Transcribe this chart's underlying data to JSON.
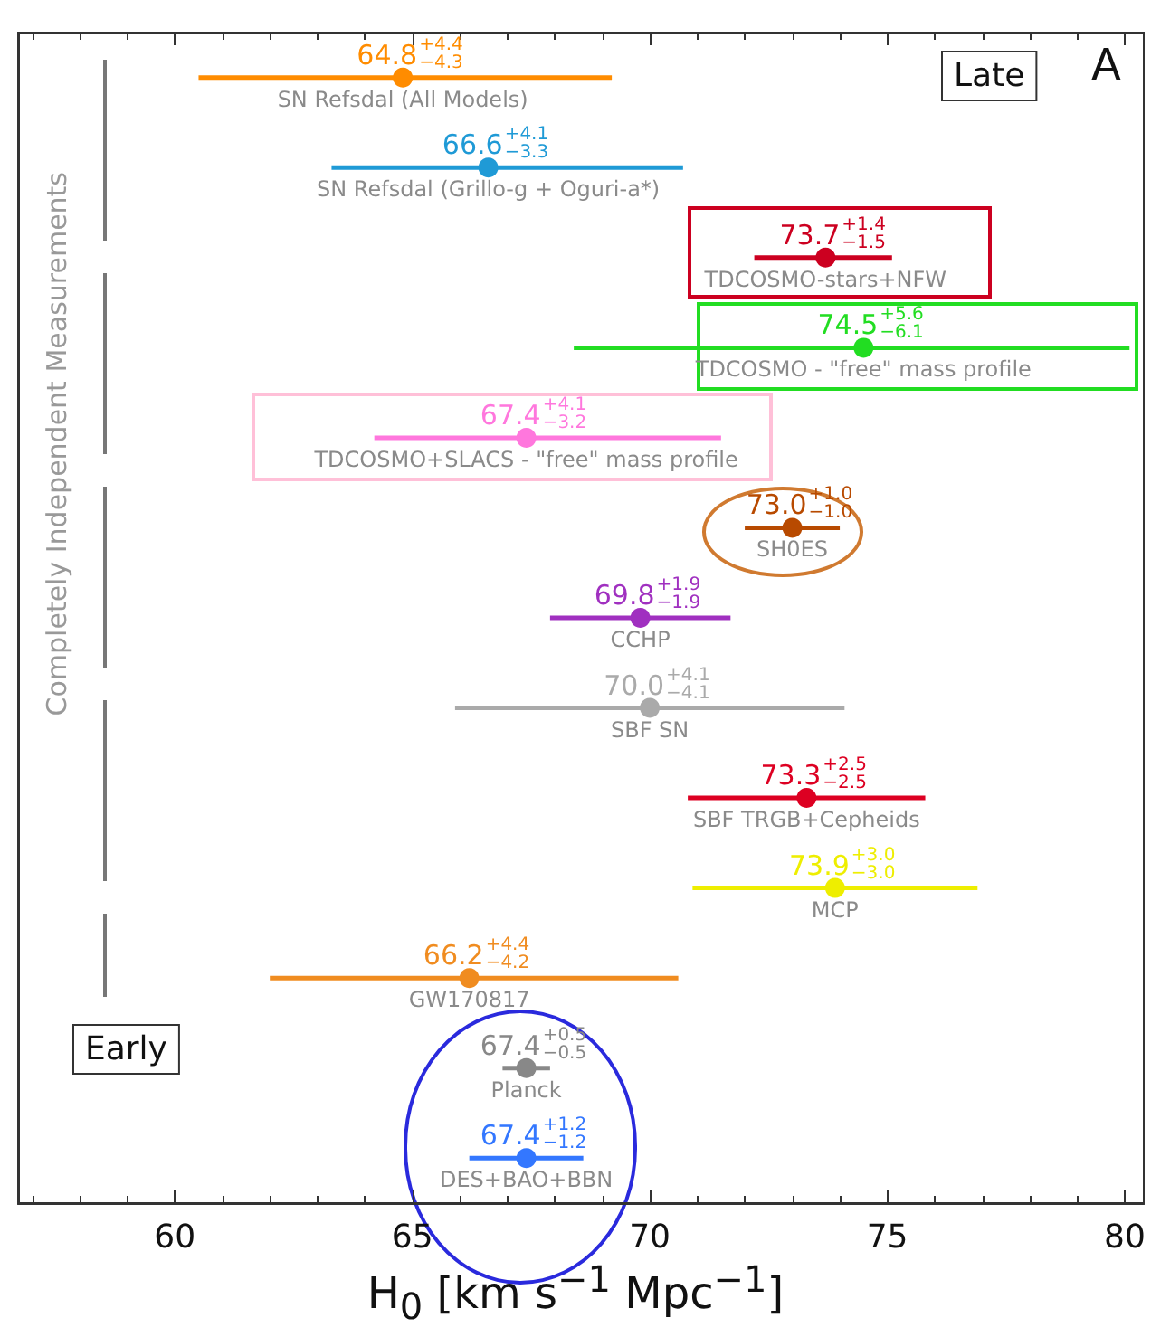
{
  "chart_data": {
    "type": "scatter",
    "orientation": "horizontal",
    "marker": "circle",
    "tick_labels": "x",
    "xlabel": "H$_{0}$ [km s$^{−1}$ Mpc$^{−1}$]",
    "categories": [
      "SN Refsdal (All Models)",
      "SN Refsdal (Grillo-g + Oguri-a*)",
      "TDCOSMO-stars+NFW",
      "TDCOSMO - \"free\" mass profile",
      "TDCOSMO+SLACS - \"free\" mass profile",
      "SH0ES",
      "CCHP",
      "SBF SN",
      "SBF TRGB+Cepheids",
      "MCP",
      "GW170817",
      "Planck",
      "DES+BAO+BBN"
    ],
    "values": [
      64.8,
      66.6,
      73.7,
      74.5,
      67.4,
      73.0,
      69.8,
      70.0,
      73.3,
      73.9,
      66.2,
      67.4,
      67.4
    ],
    "value_labels": [
      "64.8$^{+4.4}$$_{−4.3}$",
      "66.6$^{+4.1}$$_{−3.3}$",
      "73.7$^{+1.4}$$_{−1.5}$",
      "74.5$^{+5.6}$$_{−6.1}$",
      "67.4$^{+4.1}$$_{−3.2}$",
      "73.0$^{+1.0}$$_{−1.0}$",
      "69.8$^{+1.9}$$_{−1.9}$",
      "70.0$^{+4.1}$$_{−4.1}$",
      "73.3$^{+2.5}$$_{−2.5}$",
      "73.9$^{+3.0}$$_{−3.0}$",
      "66.2$^{+4.4}$$_{−4.2}$",
      "67.4$^{+0.5}$$_{−0.5}$",
      "67.4$^{+1.2}$$_{−1.2}$"
    ],
    "errors": [
      [
        60.5,
        69.2
      ],
      [
        63.3,
        70.7
      ],
      [
        72.2,
        75.1
      ],
      [
        68.4,
        80.1
      ],
      [
        64.2,
        71.5
      ],
      [
        72.0,
        74.0
      ],
      [
        67.9,
        71.7
      ],
      [
        65.9,
        74.1
      ],
      [
        70.8,
        75.8
      ],
      [
        70.9,
        76.9
      ],
      [
        62.0,
        70.6
      ],
      [
        66.9,
        67.9
      ],
      [
        66.2,
        68.6
      ]
    ],
    "colors": [
      "#ff8c00",
      "#1f9ad6",
      "#cc0020",
      "#22dd22",
      "#ff77dd",
      "#b84a00",
      "#a030c0",
      "#aaaaaa",
      "#dd0022",
      "#eeee00",
      "#f08c20",
      "#888888",
      "#3377ff"
    ],
    "xlim": [
      56.7,
      80.4
    ],
    "xticks": [
      {
        "value": 57,
        "label": null
      },
      {
        "value": 58,
        "label": null
      },
      {
        "value": 59,
        "label": null
      },
      60,
      {
        "value": 61,
        "label": null
      },
      {
        "value": 62,
        "label": null
      },
      {
        "value": 63,
        "label": null
      },
      {
        "value": 64,
        "label": null
      },
      65,
      {
        "value": 66,
        "label": null
      },
      {
        "value": 67,
        "label": null
      },
      {
        "value": 68,
        "label": null
      },
      {
        "value": 69,
        "label": null
      },
      70,
      {
        "value": 71,
        "label": null
      },
      {
        "value": 72,
        "label": null
      },
      {
        "value": 73,
        "label": null
      },
      {
        "value": 74,
        "label": null
      },
      75,
      {
        "value": 76,
        "label": null
      },
      {
        "value": 77,
        "label": null
      },
      {
        "value": 78,
        "label": null
      },
      {
        "value": 79,
        "label": null
      },
      80
    ],
    "annotations": [
      "A",
      "Late",
      "Early",
      "Completely Independent Measurements"
    ]
  }
}
